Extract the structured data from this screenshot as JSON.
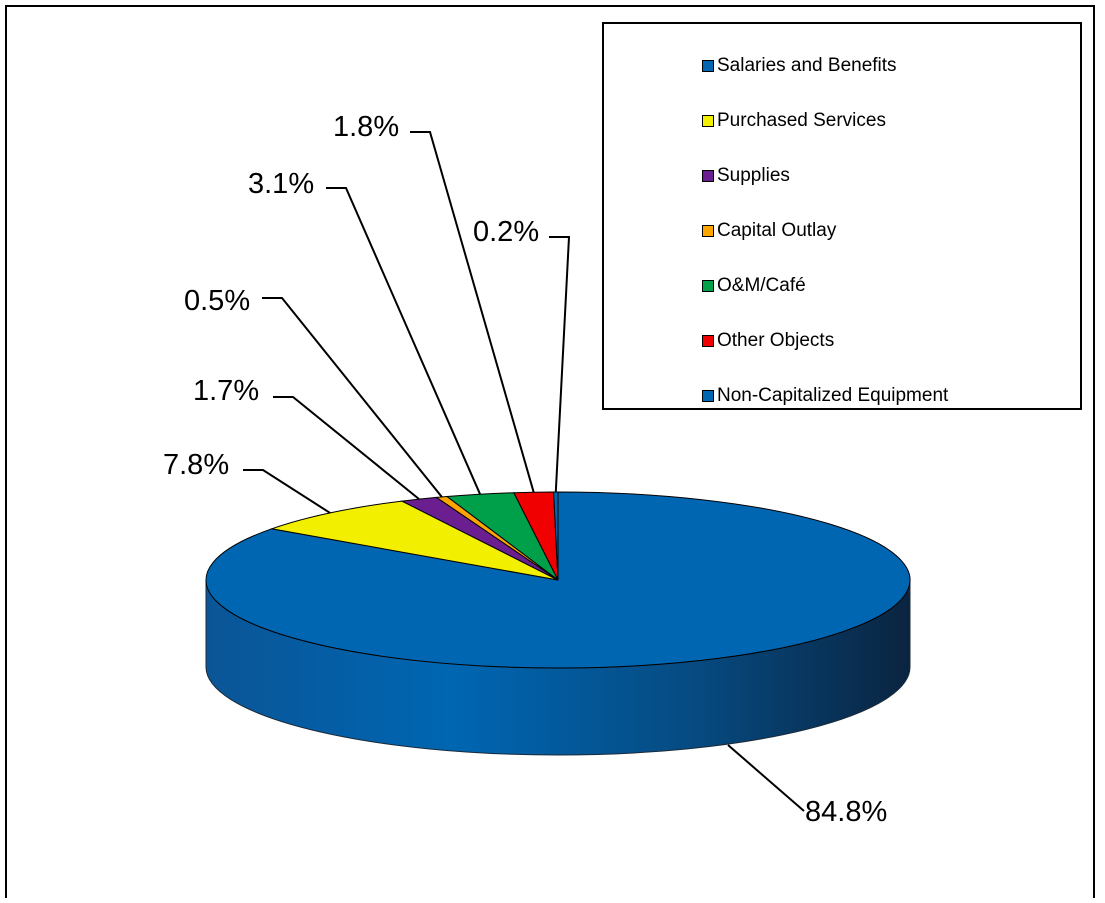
{
  "chart_data": {
    "type": "pie",
    "style": "3d",
    "legend_position": "top-right",
    "slices": [
      {
        "label": "Salaries and Benefits",
        "value": 84.8,
        "value_label": "84.8%",
        "color": "#0066B2"
      },
      {
        "label": "Purchased Services",
        "value": 7.8,
        "value_label": "7.8%",
        "color": "#F2F000"
      },
      {
        "label": "Supplies",
        "value": 1.7,
        "value_label": "1.7%",
        "color": "#6A1E8F"
      },
      {
        "label": "Capital Outlay",
        "value": 0.5,
        "value_label": "0.5%",
        "color": "#FFA500"
      },
      {
        "label": "O&M/Café",
        "value": 3.1,
        "value_label": "3.1%",
        "color": "#00A04B"
      },
      {
        "label": "Other Objects",
        "value": 1.8,
        "value_label": "1.8%",
        "color": "#F00000"
      },
      {
        "label": "Non-Capitalized Equipment",
        "value": 0.2,
        "value_label": "0.2%",
        "color": "#0066B2"
      }
    ]
  }
}
